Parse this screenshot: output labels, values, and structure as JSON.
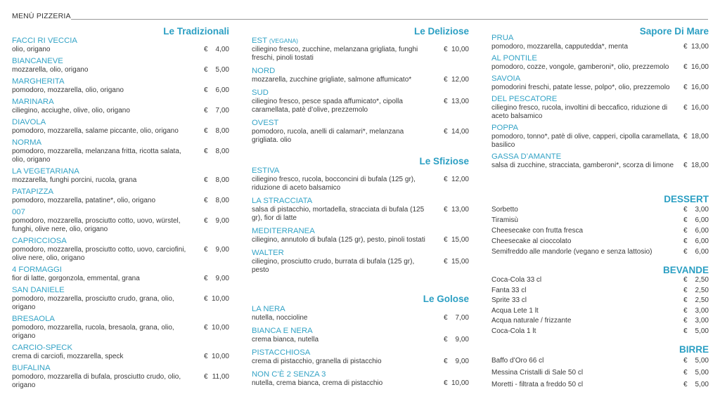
{
  "header": {
    "title": "MENÙ PIZZERIA"
  },
  "colors": {
    "accent": "#2b9fc3",
    "text": "#3a3a3a"
  },
  "currency": "€",
  "sections": {
    "tradizionali": {
      "title": "Le Tradizionali",
      "items": [
        {
          "name": "FACCI RI VECCIA",
          "desc": "olio, origano",
          "price": "4,00"
        },
        {
          "name": "BIANCANEVE",
          "desc": "mozzarella, olio, origano",
          "price": "5,00"
        },
        {
          "name": "MARGHERITA",
          "desc": "pomodoro, mozzarella, olio, origano",
          "price": "6,00"
        },
        {
          "name": "MARINARA",
          "desc": "ciliegino, acciughe, olive, olio, origano",
          "price": "7,00"
        },
        {
          "name": "DIAVOLA",
          "desc": "pomodoro, mozzarella, salame piccante, olio, origano",
          "price": "8,00"
        },
        {
          "name": "NORMA",
          "desc": "pomodoro, mozzarella, melanzana fritta, ricotta salata, olio, origano",
          "price": "8,00"
        },
        {
          "name": "LA VEGETARIANA",
          "desc": "mozzarella, funghi porcini, rucola, grana",
          "price": "8,00"
        },
        {
          "name": "PATAPIZZA",
          "desc": "pomodoro, mozzarella, patatine*, olio, origano",
          "price": "8,00"
        },
        {
          "name": "007",
          "desc": "pomodoro, mozzarella, prosciutto cotto, uovo, würstel, funghi, olive nere, olio, origano",
          "price": "9,00"
        },
        {
          "name": "CAPRICCIOSA",
          "desc": "pomodoro, mozzarella, prosciutto cotto, uovo, carciofini, olive nere, olio, origano",
          "price": "9,00"
        },
        {
          "name": "4 FORMAGGI",
          "desc": "fior di latte, gorgonzola, emmental, grana",
          "price": "9,00"
        },
        {
          "name": "SAN DANIELE",
          "desc": "pomodoro, mozzarella, prosciutto crudo, grana, olio, origano",
          "price": "10,00"
        },
        {
          "name": "BRESAOLA",
          "desc": "pomodoro, mozzarella, rucola, bresaola, grana, olio, origano",
          "price": "10,00"
        },
        {
          "name": "CARCIO-SPECK",
          "desc": "crema di carciofi, mozzarella, speck",
          "price": "10,00"
        },
        {
          "name": "BUFALINA",
          "desc": "pomodoro, mozzarella di bufala, prosciutto crudo, olio, origano",
          "price": "11,00"
        }
      ]
    },
    "deliziose": {
      "title": "Le Deliziose",
      "items": [
        {
          "name": "EST",
          "tag": "(VEGANA)",
          "desc": "ciliegino fresco, zucchine, melanzana grigliata, funghi freschi, pinoli tostati",
          "price": "10,00"
        },
        {
          "name": "NORD",
          "desc": "mozzarella, zucchine grigliate, salmone affumicato*",
          "price": "12,00"
        },
        {
          "name": "SUD",
          "desc": "ciliegino fresco, pesce spada affumicato*, cipolla caramellata, patè d’olive, prezzemolo",
          "price": "13,00"
        },
        {
          "name": "OVEST",
          "desc": "pomodoro, rucola, anelli di calamari*, melanzana grigliata. olio",
          "price": "14,00"
        }
      ]
    },
    "sfiziose": {
      "title": "Le Sfiziose",
      "items": [
        {
          "name": "ESTIVA",
          "desc": "ciliegino fresco, rucola, bocconcini di bufala (125 gr), riduzione di aceto balsamico",
          "price": "12,00"
        },
        {
          "name": "LA STRACCIATA",
          "desc": "salsa di pistacchio, mortadella, stracciata di bufala (125 gr), fior di latte",
          "price": "13,00"
        },
        {
          "name": "MEDITERRANEA",
          "desc": "ciliegino, annutolo di bufala (125 gr), pesto, pinoli tostati",
          "price": "15,00"
        },
        {
          "name": "WALTER",
          "desc": "ciliegino, prosciutto crudo, burrata di bufala (125 gr), pesto",
          "price": "15,00"
        }
      ]
    },
    "golose": {
      "title": "Le Golose",
      "items": [
        {
          "name": "LA NERA",
          "desc": "nutella, noccioline",
          "price": "7,00"
        },
        {
          "name": "BIANCA E NERA",
          "desc": "crema bianca, nutella",
          "price": "9,00"
        },
        {
          "name": "PISTACCHIOSA",
          "desc": "crema di pistacchio, granella di pistacchio",
          "price": "9,00"
        },
        {
          "name": "NON C’È 2 SENZA 3",
          "desc": "nutella, crema bianca, crema di pistacchio",
          "price": "10,00"
        }
      ]
    },
    "mare": {
      "title": "Sapore Di Mare",
      "items": [
        {
          "name": "PRUA",
          "desc": "pomodoro, mozzarella, capputedda*, menta",
          "price": "13,00"
        },
        {
          "name": "AL PONTILE",
          "desc": "pomodoro, cozze, vongole, gamberoni*, olio, prezzemolo",
          "price": "16,00"
        },
        {
          "name": "SAVOIA",
          "desc": "pomodorini freschi, patate lesse, polpo*, olio, prezzemolo",
          "price": "16,00"
        },
        {
          "name": "DEL PESCATORE",
          "desc": "ciliegino fresco, rucola, involtini di beccafico, riduzione di aceto balsamico",
          "price": "16,00"
        },
        {
          "name": "POPPA",
          "desc": "pomodoro, tonno*, patè di olive, capperi, cipolla caramellata, basilico",
          "price": "18,00"
        },
        {
          "name": "GASSA D’AMANTE",
          "desc": "salsa di zucchine, stracciata, gamberoni*, scorza di limone",
          "price": "18,00"
        }
      ]
    },
    "dessert": {
      "title": "DESSERT",
      "items": [
        {
          "name": "Sorbetto",
          "price": "3,00"
        },
        {
          "name": "Tiramisù",
          "price": "6,00"
        },
        {
          "name": "Cheesecake con frutta fresca",
          "price": "6,00"
        },
        {
          "name": "Cheesecake al cioccolato",
          "price": "6,00"
        },
        {
          "name": "Semifreddo alle mandorle (vegano e senza lattosio)",
          "price": "6,00"
        }
      ]
    },
    "bevande": {
      "title": "BEVANDE",
      "items": [
        {
          "name": "Coca-Cola 33 cl",
          "price": "2,50"
        },
        {
          "name": "Fanta 33 cl",
          "price": "2,50"
        },
        {
          "name": "Sprite 33 cl",
          "price": "2,50"
        },
        {
          "name": "Acqua Lete 1 lt",
          "price": "3,00"
        },
        {
          "name": "Acqua naturale / frizzante",
          "price": "3,00"
        },
        {
          "name": "Coca-Cola 1 lt",
          "price": "5,00"
        }
      ]
    },
    "birre": {
      "title": "BIRRE",
      "items": [
        {
          "name": "Baffo d’Oro 66 cl",
          "price": "5,00"
        },
        {
          "name": "Messina Cristalli di Sale 50 cl",
          "price": "5,00"
        },
        {
          "name": "Moretti - filtrata a freddo 50 cl",
          "price": "5,00"
        }
      ]
    }
  }
}
